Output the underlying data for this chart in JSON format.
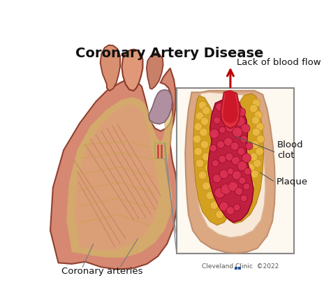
{
  "title": "Coronary Artery Disease",
  "title_fontsize": 14,
  "title_fontweight": "bold",
  "background_color": "#ffffff",
  "labels": {
    "lack_of_blood_flow": "Lack of blood flow",
    "blood_clot": "Blood\nclot",
    "plaque": "Plaque",
    "coronary_arteries": "Coronary arteries",
    "cleveland": "Cleveland Clinic  ©2022"
  },
  "label_fontsize": 9.5,
  "label_color": "#111111",
  "arrow_color": "#bb0000",
  "figsize": [
    4.74,
    4.41
  ],
  "dpi": 100,
  "colors": {
    "heart_muscle": "#d4826a",
    "heart_fat": "#d4b86a",
    "heart_vessel": "#e09878",
    "heart_edge": "#8B3A2A",
    "heart_dark": "#c06858",
    "heart_purple": "#9b7b8a",
    "artery_wall_outer": "#dba882",
    "artery_wall_inner": "#f2c9a8",
    "artery_lumen": "#f8e8d8",
    "plaque_fill": "#d4a020",
    "plaque_highlight": "#e8b840",
    "clot_fill": "#c02040",
    "clot_highlight": "#d83050",
    "clot_shadow": "#8b0020",
    "top_vessel": "#cc2030",
    "box_bg": "#fdf8f0",
    "box_edge": "#888888"
  }
}
